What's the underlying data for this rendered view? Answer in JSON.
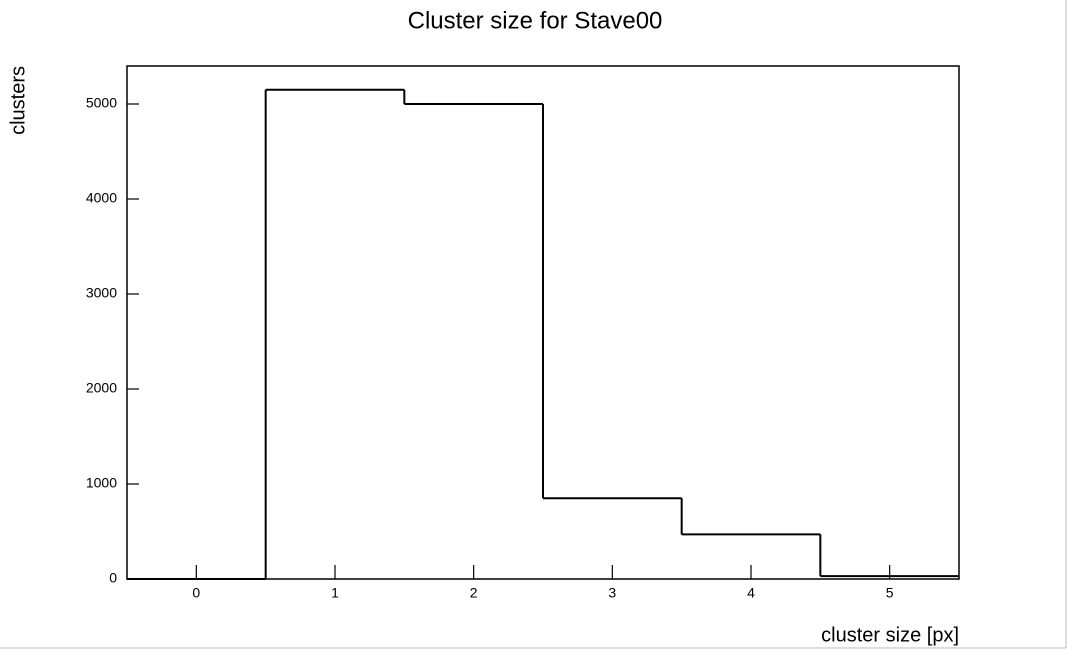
{
  "chart_data": {
    "type": "histogram",
    "title": "Cluster size for Stave00",
    "x_label": "cluster size [px]",
    "y_label": "clusters",
    "bins": [
      -0.5,
      0.5,
      1.5,
      2.5,
      3.5,
      4.5,
      5.5
    ],
    "values": [
      0,
      5150,
      5000,
      850,
      470,
      30
    ],
    "color": "#000000",
    "xlim": [
      -0.5,
      5.5
    ],
    "xticks": [
      0,
      1,
      2,
      3,
      4,
      5
    ],
    "ylim": [
      0,
      5400
    ],
    "yticks": [
      0,
      1000,
      2000,
      3000,
      4000,
      5000
    ],
    "grid": false
  }
}
